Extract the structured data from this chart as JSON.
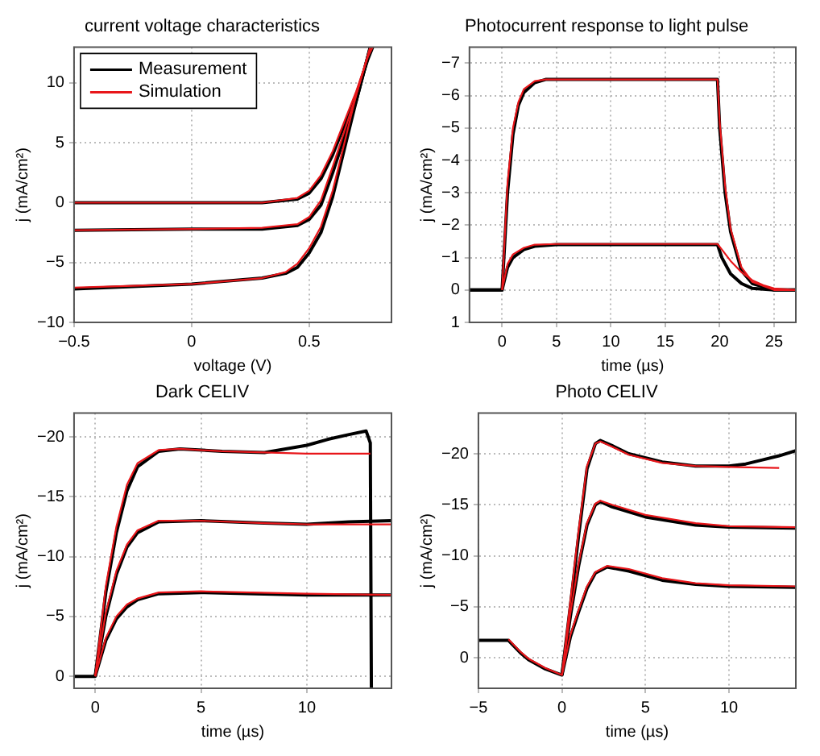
{
  "chart_data": [
    {
      "type": "line",
      "title": "current voltage characteristics",
      "xlabel": "voltage (V)",
      "ylabel": "j (mA/cm²)",
      "xlim": [
        -0.5,
        0.85
      ],
      "ylim": [
        -10,
        13
      ],
      "xticks": [
        -0.5,
        0,
        0.5
      ],
      "yticks": [
        -10,
        -5,
        0,
        5,
        10
      ],
      "grid": true,
      "legend": "top left",
      "marker": "none",
      "series": [
        {
          "name": "Measurement",
          "color": "#000000",
          "x": [
            -0.5,
            0,
            0.3,
            0.45,
            0.5,
            0.55,
            0.6,
            0.65,
            0.7,
            0.75,
            0.77
          ],
          "values": [
            0,
            0,
            0,
            0.3,
            0.8,
            2,
            4,
            6.5,
            9,
            12,
            13
          ]
        },
        {
          "color": "#000000",
          "x": [
            -0.5,
            0,
            0.3,
            0.45,
            0.5,
            0.55,
            0.6,
            0.65,
            0.7,
            0.76
          ],
          "values": [
            -2.3,
            -2.2,
            -2.2,
            -1.9,
            -1.4,
            -0.2,
            2.5,
            5.5,
            8.5,
            13
          ]
        },
        {
          "color": "#000000",
          "x": [
            -0.5,
            0,
            0.3,
            0.4,
            0.45,
            0.5,
            0.55,
            0.6,
            0.65,
            0.7,
            0.76
          ],
          "values": [
            -7.2,
            -6.8,
            -6.3,
            -5.9,
            -5.4,
            -4.2,
            -2.5,
            0.5,
            4.5,
            8.5,
            13
          ]
        },
        {
          "name": "Simulation",
          "color": "#e8161a",
          "x": [
            -0.5,
            0,
            0.3,
            0.45,
            0.5,
            0.55,
            0.6,
            0.65,
            0.7,
            0.75,
            0.77
          ],
          "values": [
            0,
            0,
            0,
            0.4,
            1,
            2.3,
            4.3,
            6.8,
            9.3,
            12.2,
            13
          ]
        },
        {
          "color": "#e8161a",
          "x": [
            -0.5,
            0,
            0.3,
            0.45,
            0.5,
            0.55,
            0.6,
            0.65,
            0.7,
            0.76
          ],
          "values": [
            -2.3,
            -2.2,
            -2.1,
            -1.8,
            -1.2,
            0.2,
            3,
            6,
            9,
            13
          ]
        },
        {
          "color": "#e8161a",
          "x": [
            -0.5,
            0,
            0.3,
            0.4,
            0.45,
            0.5,
            0.55,
            0.6,
            0.65,
            0.7,
            0.76
          ],
          "values": [
            -7.1,
            -6.8,
            -6.3,
            -5.8,
            -5.1,
            -3.8,
            -2,
            1,
            5,
            9,
            13
          ]
        }
      ]
    },
    {
      "type": "line",
      "title": "Photocurrent response to light pulse",
      "xlabel": "time (µs)",
      "ylabel": "j (mA/cm²)",
      "xlim": [
        -3,
        27
      ],
      "ylim": [
        1,
        -7.5
      ],
      "xticks": [
        0,
        5,
        10,
        15,
        20,
        25
      ],
      "yticks": [
        1,
        0,
        -1,
        -2,
        -3,
        -4,
        -5,
        -6,
        -7
      ],
      "grid": true,
      "marker": "none",
      "series": [
        {
          "color": "#000000",
          "x": [
            -3,
            0,
            0.5,
            1,
            1.5,
            2,
            3,
            4,
            10,
            19.8,
            20,
            20.5,
            21,
            22,
            23,
            25,
            27
          ],
          "values": [
            0,
            0,
            -3,
            -4.8,
            -5.7,
            -6.1,
            -6.4,
            -6.5,
            -6.5,
            -6.5,
            -5,
            -3,
            -1.8,
            -0.6,
            -0.2,
            0,
            0
          ]
        },
        {
          "color": "#000000",
          "x": [
            -3,
            0,
            0.5,
            1,
            2,
            3,
            5,
            19.8,
            20.2,
            21,
            22,
            23,
            25,
            27
          ],
          "values": [
            0,
            0,
            -0.7,
            -1,
            -1.25,
            -1.35,
            -1.4,
            -1.4,
            -1,
            -0.5,
            -0.2,
            -0.05,
            0,
            0
          ]
        },
        {
          "color": "#e8161a",
          "x": [
            0,
            0.5,
            1,
            1.5,
            2,
            3,
            4,
            10,
            19.8,
            20,
            20.5,
            21,
            22,
            23,
            25,
            27
          ],
          "values": [
            0,
            -3.3,
            -5,
            -5.8,
            -6.2,
            -6.45,
            -6.5,
            -6.5,
            -6.5,
            -5.2,
            -3.2,
            -1.9,
            -0.7,
            -0.25,
            0,
            0
          ]
        },
        {
          "color": "#e8161a",
          "x": [
            0,
            0.5,
            1,
            2,
            3,
            5,
            19.8,
            20.2,
            21,
            22,
            23,
            24,
            25,
            27
          ],
          "values": [
            0,
            -0.8,
            -1.1,
            -1.3,
            -1.4,
            -1.42,
            -1.42,
            -1.25,
            -0.9,
            -0.55,
            -0.3,
            -0.15,
            -0.05,
            0
          ]
        }
      ]
    },
    {
      "type": "line",
      "title": "Dark CELIV",
      "xlabel": "time (µs)",
      "ylabel": "j (mA/cm²)",
      "xlim": [
        -1,
        14
      ],
      "ylim": [
        1,
        -22
      ],
      "xticks": [
        0,
        5,
        10
      ],
      "yticks": [
        0,
        -5,
        -10,
        -15,
        -20
      ],
      "grid": true,
      "marker": "none",
      "series": [
        {
          "color": "#000000",
          "x": [
            -1,
            0,
            0.5,
            1,
            1.5,
            2,
            3,
            4,
            6,
            8,
            9,
            10,
            11,
            12,
            12.8,
            13,
            13.05
          ],
          "values": [
            0,
            0,
            -7,
            -12,
            -15.5,
            -17.5,
            -18.8,
            -19,
            -18.8,
            -18.7,
            -19,
            -19.3,
            -19.8,
            -20.2,
            -20.5,
            -19.5,
            1
          ]
        },
        {
          "color": "#000000",
          "x": [
            0,
            0.5,
            1,
            1.5,
            2,
            3,
            5,
            8,
            10,
            12,
            14
          ],
          "values": [
            0,
            -5,
            -8.5,
            -10.8,
            -12,
            -12.9,
            -13,
            -12.8,
            -12.7,
            -12.9,
            -13
          ]
        },
        {
          "color": "#000000",
          "x": [
            0,
            0.5,
            1,
            1.5,
            2,
            3,
            5,
            10,
            14
          ],
          "values": [
            0,
            -3,
            -4.8,
            -5.8,
            -6.4,
            -6.9,
            -7,
            -6.8,
            -6.8
          ]
        },
        {
          "color": "#e8161a",
          "x": [
            0,
            0.5,
            1,
            1.5,
            2,
            3,
            4,
            6,
            8,
            10,
            13
          ],
          "values": [
            0,
            -7.5,
            -12.5,
            -16,
            -17.8,
            -18.9,
            -19,
            -18.8,
            -18.7,
            -18.6,
            -18.6
          ]
        },
        {
          "color": "#e8161a",
          "x": [
            0,
            0.5,
            1,
            1.5,
            2,
            3,
            5,
            8,
            10,
            12,
            14
          ],
          "values": [
            0,
            -5.3,
            -8.8,
            -11,
            -12.2,
            -13,
            -13,
            -12.8,
            -12.7,
            -12.7,
            -12.7
          ]
        },
        {
          "color": "#e8161a",
          "x": [
            0,
            0.5,
            1,
            1.5,
            2,
            3,
            5,
            10,
            14
          ],
          "values": [
            0,
            -3.2,
            -5,
            -6,
            -6.5,
            -7,
            -7.1,
            -6.9,
            -6.8
          ]
        }
      ]
    },
    {
      "type": "line",
      "title": "Photo CELIV",
      "xlabel": "time (µs)",
      "ylabel": "j (mA/cm²)",
      "xlim": [
        -5,
        14
      ],
      "ylim": [
        3,
        -24
      ],
      "xticks": [
        -5,
        0,
        5,
        10
      ],
      "yticks": [
        0,
        -5,
        -10,
        -15,
        -20
      ],
      "grid": true,
      "marker": "none",
      "series": [
        {
          "color": "#000000",
          "x": [
            -5,
            -3.2,
            -2.5,
            -2,
            -1,
            0,
            0.5,
            1,
            1.5,
            2,
            2.3,
            3,
            4,
            6,
            8,
            10,
            11,
            12,
            13,
            14
          ],
          "values": [
            -1.7,
            -1.7,
            -0.5,
            0.2,
            1.1,
            1.7,
            -5,
            -12,
            -18.5,
            -21,
            -21.3,
            -20.8,
            -20,
            -19.2,
            -18.8,
            -18.8,
            -19,
            -19.4,
            -19.8,
            -20.3
          ]
        },
        {
          "color": "#000000",
          "x": [
            0,
            0.5,
            1,
            1.5,
            2,
            2.3,
            3,
            5,
            8,
            10,
            14
          ],
          "values": [
            1.7,
            -4,
            -9,
            -13,
            -15,
            -15.3,
            -14.8,
            -13.8,
            -13,
            -12.8,
            -12.7
          ]
        },
        {
          "color": "#000000",
          "x": [
            0,
            0.5,
            1,
            1.5,
            2,
            2.7,
            4,
            6,
            8,
            10,
            14
          ],
          "values": [
            1.7,
            -2,
            -4.5,
            -6.8,
            -8.3,
            -8.9,
            -8.5,
            -7.6,
            -7.2,
            -7,
            -6.9
          ]
        },
        {
          "color": "#e8161a",
          "x": [
            -3.2,
            -2.5,
            -2,
            -1,
            0,
            0.5,
            1,
            1.5,
            2,
            2.3,
            3,
            4,
            6,
            8,
            10,
            13
          ],
          "values": [
            -1.8,
            -0.6,
            0.1,
            1,
            1.7,
            -5.5,
            -12.5,
            -18.8,
            -21,
            -21.2,
            -20.7,
            -19.9,
            -19.1,
            -18.8,
            -18.7,
            -18.6
          ]
        },
        {
          "color": "#e8161a",
          "x": [
            0,
            0.5,
            1,
            1.5,
            2,
            2.3,
            3,
            5,
            8,
            10,
            14
          ],
          "values": [
            1.7,
            -4.3,
            -9.3,
            -13.2,
            -15.1,
            -15.4,
            -15,
            -14,
            -13.2,
            -12.9,
            -12.8
          ]
        },
        {
          "color": "#e8161a",
          "x": [
            0,
            0.5,
            1,
            1.5,
            2,
            2.7,
            4,
            6,
            8,
            10,
            14
          ],
          "values": [
            1.7,
            -2.2,
            -4.7,
            -7,
            -8.4,
            -9,
            -8.7,
            -7.8,
            -7.3,
            -7.1,
            -7
          ]
        }
      ]
    }
  ]
}
